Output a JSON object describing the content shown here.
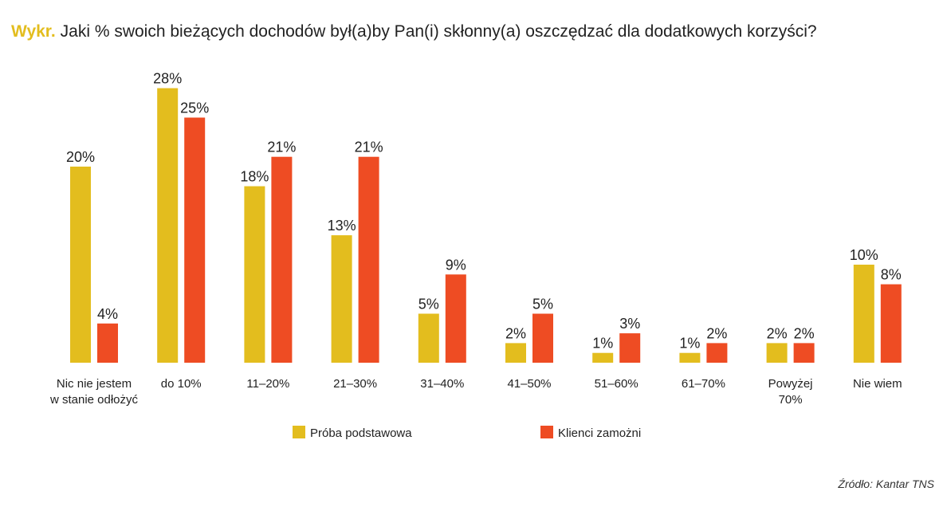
{
  "title": {
    "prefix": "Wykr.",
    "text": "Jaki % swoich bieżących dochodów był(a)by Pan(i) skłonny(a) oszczędzać dla dodatkowych korzyści?"
  },
  "source": "Źródło: Kantar TNS",
  "colors": {
    "prefix": "#E3BD1E",
    "series_a": "#E3BD1E",
    "series_b": "#EE4C23"
  },
  "chart_data": {
    "type": "bar",
    "categories": [
      [
        "Nic nie jestem",
        "w stanie odłożyć"
      ],
      [
        "do 10%"
      ],
      [
        "11–20%"
      ],
      [
        "21–30%"
      ],
      [
        "31–40%"
      ],
      [
        "41–50%"
      ],
      [
        "51–60%"
      ],
      [
        "61–70%"
      ],
      [
        "Powyżej",
        "70%"
      ],
      [
        "Nie wiem"
      ]
    ],
    "series": [
      {
        "name": "Próba podstawowa",
        "color": "#E3BD1E",
        "values": [
          20,
          28,
          18,
          13,
          5,
          2,
          1,
          1,
          2,
          10
        ]
      },
      {
        "name": "Klienci zamożni",
        "color": "#EE4C23",
        "values": [
          4,
          25,
          21,
          21,
          9,
          5,
          3,
          2,
          2,
          8
        ]
      }
    ],
    "value_suffix": "%",
    "ylim": [
      0,
      28
    ],
    "grid": false,
    "legend": "bottom"
  }
}
